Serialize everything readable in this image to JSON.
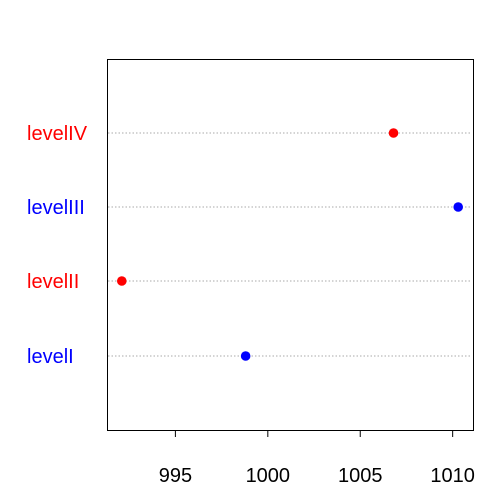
{
  "chart_data": {
    "type": "scatter",
    "title": "",
    "xlabel": "",
    "ylabel": "",
    "categories": [
      "levelI",
      "levelII",
      "levelIII",
      "levelIV"
    ],
    "values": [
      998.8,
      992.1,
      1010.3,
      1006.8
    ],
    "point_colors": [
      "#0000ff",
      "#ff0000",
      "#0000ff",
      "#ff0000"
    ],
    "label_colors": [
      "#0000ff",
      "#ff0000",
      "#0000ff",
      "#ff0000"
    ],
    "xlim": [
      991.3,
      1011.1
    ],
    "x_ticks": [
      995,
      1000,
      1005,
      1010
    ],
    "x_tick_labels": [
      "995",
      "1000",
      "1005",
      "1010"
    ],
    "guide_line_color": "#aaaaaa",
    "grid": false,
    "legend": "none"
  }
}
